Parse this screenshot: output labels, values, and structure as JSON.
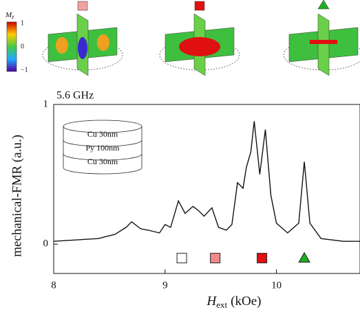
{
  "chart_data": {
    "type": "line",
    "title": "5.6 GHz",
    "y_label": "mechanical-FMR (a.u.)",
    "x_label": "H",
    "x_label_sub": "ext",
    "x_label_unit": "(kOe)",
    "xlim": [
      8,
      10.75
    ],
    "ylim": [
      -0.21,
      1.0
    ],
    "xticks": [
      8,
      9,
      10
    ],
    "yticks": [
      0,
      1
    ],
    "color": "#111111",
    "x": [
      8.0,
      8.2,
      8.4,
      8.55,
      8.65,
      8.7,
      8.78,
      8.85,
      8.95,
      9.0,
      9.05,
      9.12,
      9.18,
      9.25,
      9.3,
      9.35,
      9.42,
      9.48,
      9.55,
      9.6,
      9.65,
      9.7,
      9.73,
      9.77,
      9.8,
      9.85,
      9.9,
      9.95,
      10.0,
      10.1,
      10.2,
      10.25,
      10.3,
      10.4,
      10.6,
      10.75
    ],
    "values": [
      0.02,
      0.03,
      0.04,
      0.07,
      0.12,
      0.16,
      0.11,
      0.1,
      0.08,
      0.14,
      0.12,
      0.31,
      0.22,
      0.27,
      0.24,
      0.2,
      0.26,
      0.12,
      0.1,
      0.14,
      0.44,
      0.4,
      0.55,
      0.66,
      0.88,
      0.5,
      0.82,
      0.35,
      0.15,
      0.08,
      0.15,
      0.59,
      0.15,
      0.04,
      0.02,
      0.02
    ],
    "markers": [
      {
        "x": 9.15,
        "y": -0.1,
        "shape": "square",
        "color": "#ffffff"
      },
      {
        "x": 9.45,
        "y": -0.1,
        "shape": "square",
        "color": "#f08a8a"
      },
      {
        "x": 9.87,
        "y": -0.1,
        "shape": "square",
        "color": "#e01010"
      },
      {
        "x": 10.25,
        "y": -0.1,
        "shape": "triangle",
        "color": "#22aa22"
      }
    ],
    "inset_layers": [
      "Cu 30nm",
      "Py 100nm",
      "Cu 30nm"
    ],
    "colorbar": {
      "label": "M",
      "label_sub": "z",
      "ticks": [
        "1",
        "0",
        "−1"
      ]
    }
  }
}
